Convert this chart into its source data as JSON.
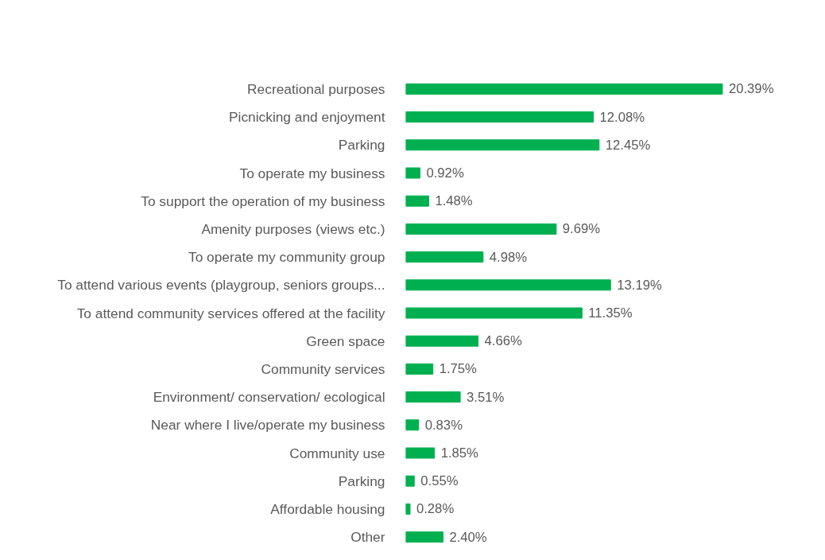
{
  "chart_data": {
    "type": "bar",
    "orientation": "horizontal",
    "color": "#00b050",
    "categories": [
      "Recreational purposes",
      "Picnicking and enjoyment",
      "Parking",
      "To operate my business",
      "To support the operation of my business",
      "Amenity purposes (views etc.)",
      "To operate my community group",
      "To attend various events (playgroup, seniors groups...",
      "To attend community services offered at the facility",
      "Green space",
      "Community services",
      "Environment/ conservation/ ecological",
      "Near where I live/operate my business",
      "Community use",
      "Parking",
      "Affordable housing",
      "Other"
    ],
    "values": [
      20.39,
      12.08,
      12.45,
      0.92,
      1.48,
      9.69,
      4.98,
      13.19,
      11.35,
      4.66,
      1.75,
      3.51,
      0.83,
      1.85,
      0.55,
      0.28,
      2.4
    ],
    "value_labels": [
      "20.39%",
      "12.08%",
      "12.45%",
      "0.92%",
      "1.48%",
      "9.69%",
      "4.98%",
      "13.19%",
      "11.35%",
      "4.66%",
      "1.75%",
      "3.51%",
      "0.83%",
      "1.85%",
      "0.55%",
      "0.28%",
      "2.40%"
    ],
    "grid": false
  }
}
